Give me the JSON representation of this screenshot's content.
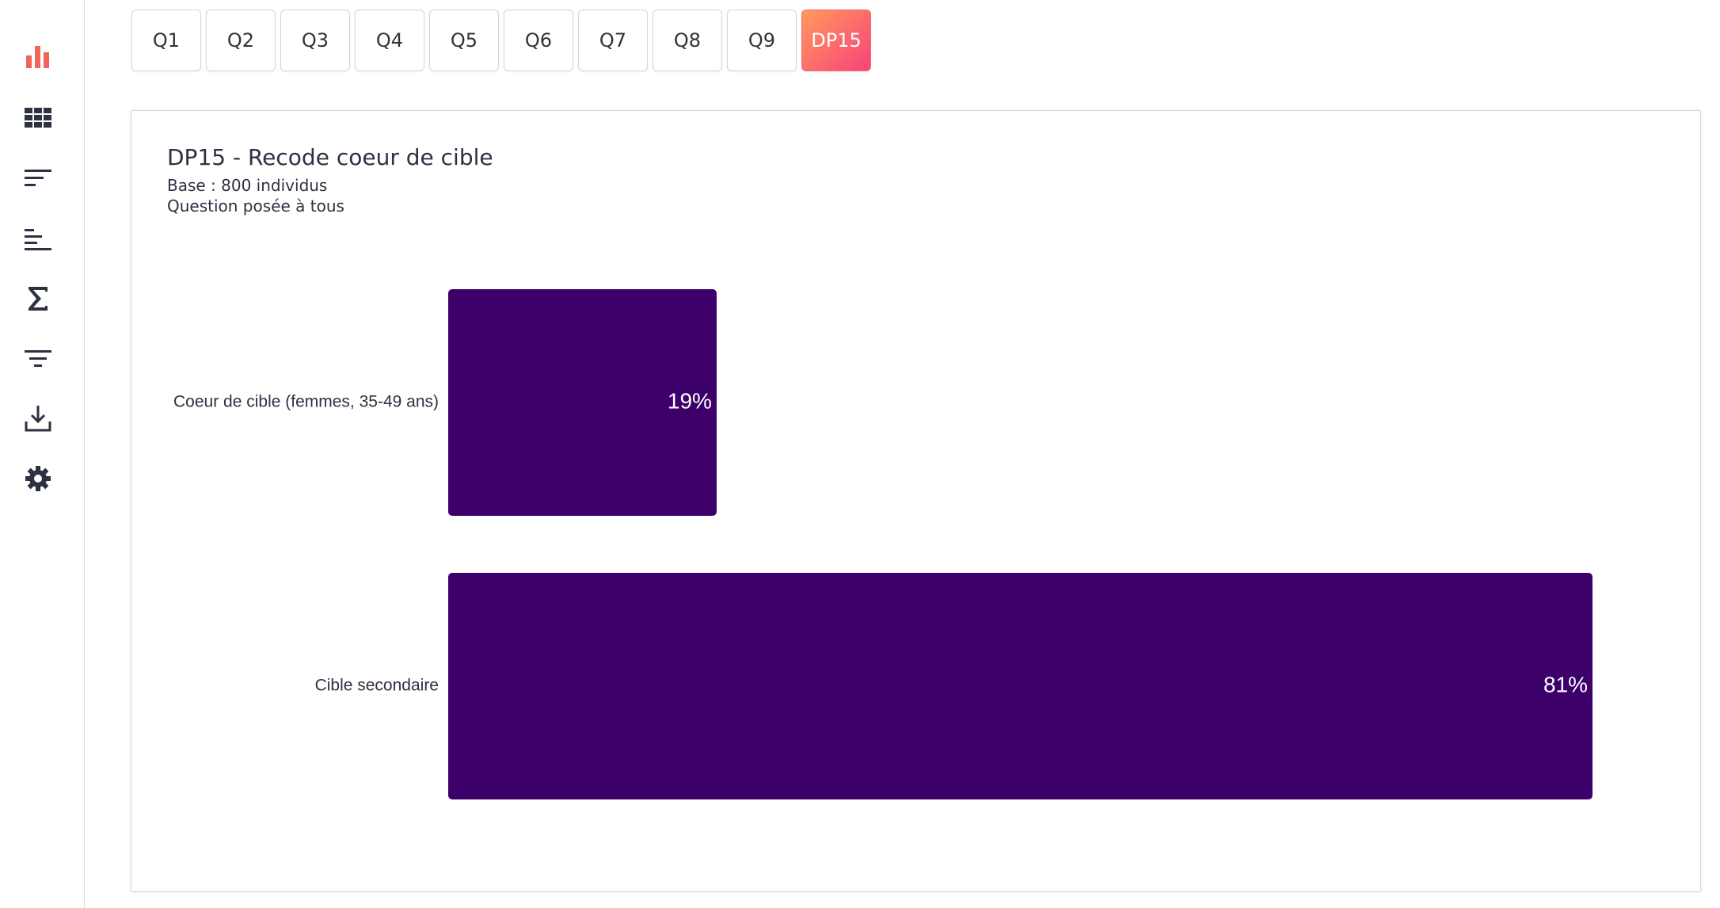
{
  "tabs": [
    {
      "label": "Q1",
      "active": false
    },
    {
      "label": "Q2",
      "active": false
    },
    {
      "label": "Q3",
      "active": false
    },
    {
      "label": "Q4",
      "active": false
    },
    {
      "label": "Q5",
      "active": false
    },
    {
      "label": "Q6",
      "active": false
    },
    {
      "label": "Q7",
      "active": false
    },
    {
      "label": "Q8",
      "active": false
    },
    {
      "label": "Q9",
      "active": false
    },
    {
      "label": "DP15",
      "active": true
    }
  ],
  "chart_data": {
    "type": "hbar",
    "title": "DP15 - Recode coeur de cible",
    "subtitle": "Base : 800 individus",
    "note": "Question posée à tous",
    "categories": [
      "Coeur de cible (femmes, 35-49 ans)",
      "Cible secondaire"
    ],
    "values": [
      19,
      81
    ],
    "value_labels": [
      "19%",
      "81%"
    ],
    "color": "#3d006b"
  }
}
